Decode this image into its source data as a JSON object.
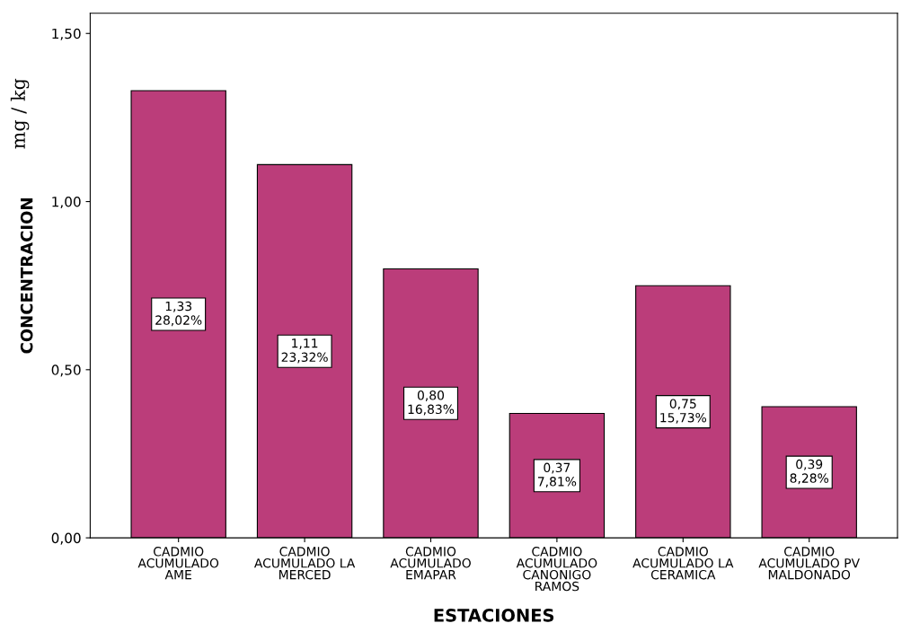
{
  "chart_data": {
    "type": "bar",
    "categories": [
      "CADMIO\nACUMULADO\nAME",
      "CADMIO\nACUMULADO LA\nMERCED",
      "CADMIO\nACUMULADO\nEMAPAR",
      "CADMIO\nACUMULADO\nCANONIGO\nRAMOS",
      "CADMIO\nACUMULADO LA\nCERAMICA",
      "CADMIO\nACUMULADO PV\nMALDONADO"
    ],
    "values": [
      1.33,
      1.11,
      0.8,
      0.37,
      0.75,
      0.39
    ],
    "value_labels": [
      "1,33\n28,02%",
      "1,11\n23,32%",
      "0,80\n16,83%",
      "0,37\n7,81%",
      "0,75\n15,73%",
      "0,39\n8,28%"
    ],
    "color": "#bb3d7a",
    "xlabel": "ESTACIONES",
    "ylabel": "CONCENTRACION",
    "annotations": [
      "mg / kg"
    ],
    "ylim": [
      0,
      1.56
    ],
    "yticks": [
      {
        "value": 0,
        "label": "0,00"
      },
      {
        "value": 0.5,
        "label": "0,50"
      },
      {
        "value": 1.0,
        "label": "1,00"
      },
      {
        "value": 1.5,
        "label": "1,50"
      }
    ],
    "grid": false
  }
}
